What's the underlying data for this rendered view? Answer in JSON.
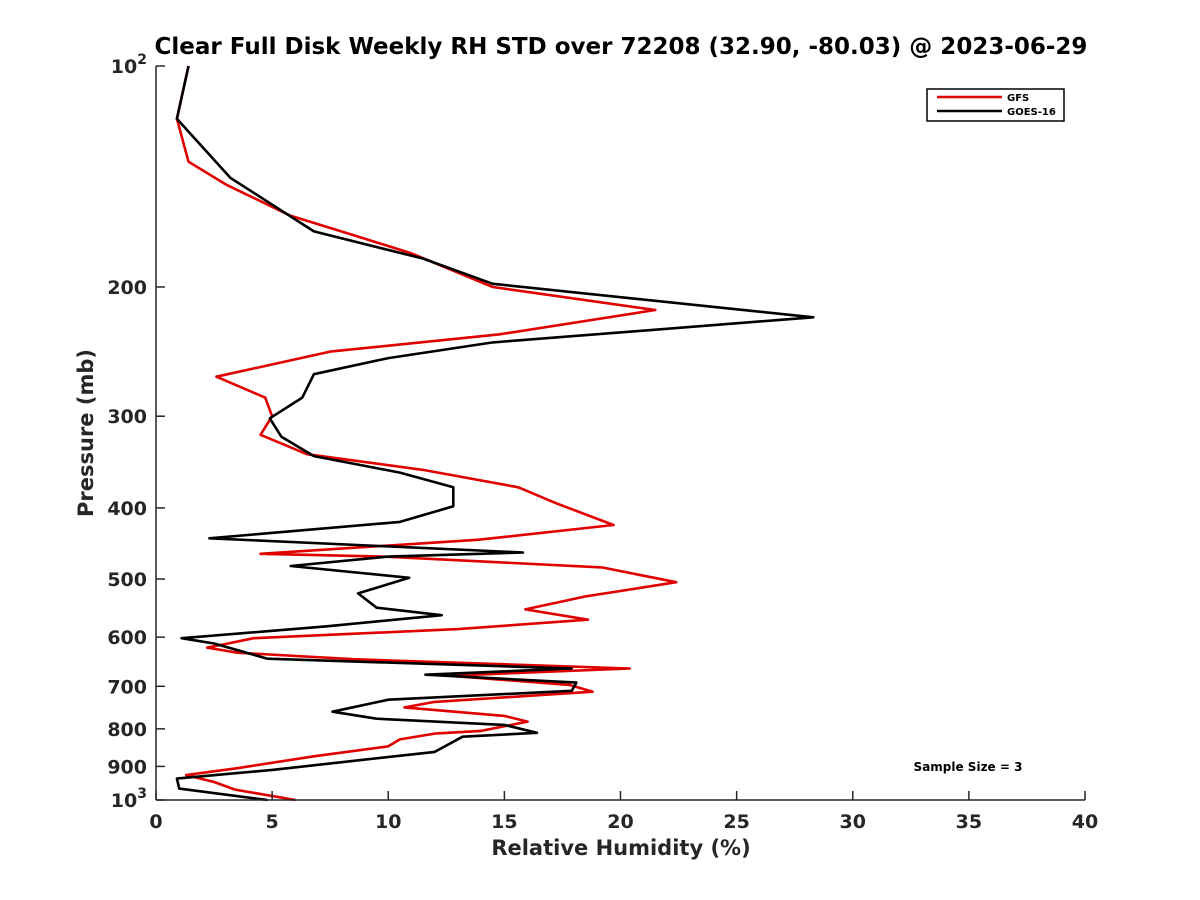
{
  "chart_data": {
    "type": "line",
    "title": "Clear Full Disk Weekly RH STD over 72208 (32.90, -80.03) @ 2023-06-29",
    "xlabel": "Relative Humidity (%)",
    "ylabel": "Pressure (mb)",
    "xlim": [
      0,
      40
    ],
    "ylim": [
      100,
      1000
    ],
    "yscale": "log",
    "y_reversed": true,
    "x_ticks": [
      "0",
      "5",
      "10",
      "15",
      "20",
      "25",
      "30",
      "35",
      "40"
    ],
    "y_ticks": [
      {
        "value": 100,
        "base": "10",
        "exp": "2"
      },
      {
        "value": 200,
        "label": "200"
      },
      {
        "value": 300,
        "label": "300"
      },
      {
        "value": 400,
        "label": "400"
      },
      {
        "value": 500,
        "label": "500"
      },
      {
        "value": 600,
        "label": "600"
      },
      {
        "value": 700,
        "label": "700"
      },
      {
        "value": 800,
        "label": "800"
      },
      {
        "value": 900,
        "label": "900"
      },
      {
        "value": 1000,
        "base": "10",
        "exp": "3"
      }
    ],
    "grid": false,
    "legend_position": "top-right",
    "annotation": "Sample Size = 3",
    "series": [
      {
        "name": "GFS",
        "color": "#e00000",
        "points": [
          [
            1.4,
            100
          ],
          [
            0.9,
            118
          ],
          [
            1.4,
            135
          ],
          [
            3.0,
            145
          ],
          [
            5.8,
            160
          ],
          [
            8.5,
            170
          ],
          [
            11.0,
            180
          ],
          [
            14.5,
            200
          ],
          [
            21.5,
            215
          ],
          [
            14.8,
            232
          ],
          [
            7.5,
            245
          ],
          [
            2.6,
            265
          ],
          [
            4.7,
            283
          ],
          [
            5.0,
            300
          ],
          [
            4.5,
            318
          ],
          [
            6.5,
            338
          ],
          [
            11.5,
            355
          ],
          [
            15.6,
            375
          ],
          [
            17.3,
            395
          ],
          [
            19.7,
            422
          ],
          [
            13.9,
            442
          ],
          [
            4.5,
            462
          ],
          [
            9.8,
            466
          ],
          [
            19.2,
            482
          ],
          [
            22.4,
            505
          ],
          [
            18.5,
            528
          ],
          [
            15.9,
            550
          ],
          [
            18.6,
            568
          ],
          [
            13.0,
            585
          ],
          [
            4.2,
            602
          ],
          [
            3.1,
            612
          ],
          [
            2.2,
            620
          ],
          [
            3.5,
            630
          ],
          [
            8.5,
            643
          ],
          [
            20.4,
            662
          ],
          [
            12.6,
            677
          ],
          [
            17.8,
            697
          ],
          [
            18.8,
            712
          ],
          [
            12.0,
            735
          ],
          [
            10.7,
            748
          ],
          [
            15.0,
            768
          ],
          [
            16.0,
            782
          ],
          [
            14.0,
            805
          ],
          [
            12.0,
            812
          ],
          [
            10.5,
            827
          ],
          [
            10.0,
            845
          ],
          [
            6.8,
            872
          ],
          [
            3.5,
            905
          ],
          [
            1.3,
            925
          ],
          [
            2.5,
            945
          ],
          [
            3.4,
            968
          ],
          [
            6.0,
            1000
          ]
        ]
      },
      {
        "name": "GOES-16",
        "color": "#000000",
        "points": [
          [
            1.4,
            100
          ],
          [
            0.9,
            118
          ],
          [
            3.2,
            142
          ],
          [
            6.8,
            168
          ],
          [
            11.5,
            183
          ],
          [
            14.5,
            198
          ],
          [
            28.3,
            220
          ],
          [
            14.5,
            238
          ],
          [
            10.0,
            250
          ],
          [
            6.8,
            263
          ],
          [
            6.3,
            283
          ],
          [
            4.9,
            302
          ],
          [
            5.4,
            320
          ],
          [
            6.8,
            340
          ],
          [
            10.5,
            358
          ],
          [
            12.8,
            375
          ],
          [
            12.8,
            398
          ],
          [
            10.5,
            418
          ],
          [
            2.3,
            440
          ],
          [
            15.8,
            460
          ],
          [
            10.0,
            466
          ],
          [
            5.8,
            480
          ],
          [
            10.9,
            498
          ],
          [
            8.7,
            523
          ],
          [
            9.5,
            547
          ],
          [
            12.3,
            560
          ],
          [
            7.3,
            580
          ],
          [
            1.1,
            602
          ],
          [
            2.5,
            612
          ],
          [
            4.8,
            642
          ],
          [
            17.9,
            662
          ],
          [
            11.6,
            675
          ],
          [
            18.1,
            692
          ],
          [
            17.9,
            710
          ],
          [
            10.0,
            730
          ],
          [
            7.6,
            758
          ],
          [
            9.5,
            775
          ],
          [
            15.0,
            790
          ],
          [
            16.4,
            810
          ],
          [
            13.2,
            820
          ],
          [
            12.0,
            860
          ],
          [
            5.0,
            910
          ],
          [
            0.9,
            935
          ],
          [
            1.0,
            965
          ],
          [
            4.8,
            1000
          ]
        ]
      }
    ]
  }
}
